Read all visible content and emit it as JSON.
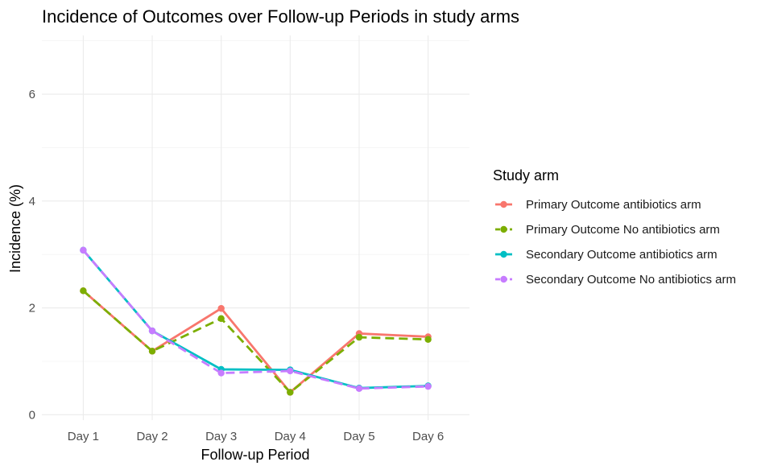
{
  "chart_data": {
    "type": "line",
    "title": "Incidence of Outcomes over Follow-up Periods in study arms",
    "xlabel": "Follow-up Period",
    "ylabel": "Incidence (%)",
    "categories": [
      "Day 1",
      "Day 2",
      "Day 3",
      "Day 4",
      "Day 5",
      "Day 6"
    ],
    "ylim": [
      -0.1,
      7.1
    ],
    "yticks": [
      0,
      2,
      4,
      6
    ],
    "grid": true,
    "legend": {
      "title": "Study arm",
      "position": "right"
    },
    "series": [
      {
        "name": "Primary Outcome antibiotics arm",
        "color": "#F8766D",
        "dash": "solid",
        "values": [
          2.32,
          1.19,
          1.99,
          0.42,
          1.52,
          1.46
        ]
      },
      {
        "name": "Primary Outcome No antibiotics arm",
        "color": "#7CAE00",
        "dash": "dashed",
        "values": [
          2.32,
          1.19,
          1.8,
          0.42,
          1.45,
          1.41
        ]
      },
      {
        "name": "Secondary Outcome antibiotics arm",
        "color": "#00BFC4",
        "dash": "solid",
        "values": [
          3.08,
          1.57,
          0.85,
          0.84,
          0.5,
          0.54
        ]
      },
      {
        "name": "Secondary Outcome No antibiotics arm",
        "color": "#C77CFF",
        "dash": "dashed",
        "values": [
          3.08,
          1.57,
          0.78,
          0.82,
          0.49,
          0.53
        ]
      }
    ]
  }
}
